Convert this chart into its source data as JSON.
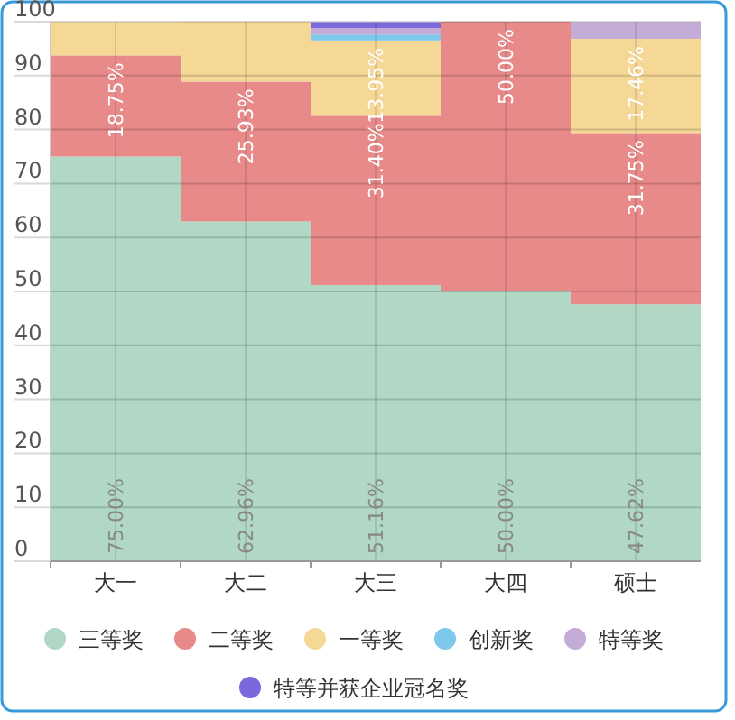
{
  "chart_data": {
    "type": "bar",
    "stacked": true,
    "categories": [
      "大一",
      "大二",
      "大三",
      "大四",
      "硕士"
    ],
    "ylim": [
      0,
      100
    ],
    "yticks": [
      0,
      10,
      20,
      30,
      40,
      50,
      60,
      70,
      80,
      90,
      100
    ],
    "grid": true,
    "legend": "bottom",
    "series": [
      {
        "name": "三等奖",
        "color": "#b0d8c4",
        "values": [
          75.0,
          62.96,
          51.16,
          50.0,
          47.62
        ],
        "value_labels": [
          "75.00%",
          "62.96%",
          "51.16%",
          "50.00%",
          "47.62%"
        ]
      },
      {
        "name": "二等奖",
        "color": "#e88a8a",
        "values": [
          18.75,
          25.93,
          31.4,
          50.0,
          31.75
        ],
        "value_labels": [
          "18.75%",
          "25.93%",
          "31.40%",
          "50.00%",
          "31.75%"
        ]
      },
      {
        "name": "一等奖",
        "color": "#f5d796",
        "values": [
          6.2,
          11.1,
          13.95,
          0,
          17.46
        ],
        "value_labels": [
          null,
          null,
          "13.95%",
          null,
          "17.46%"
        ]
      },
      {
        "name": "创新奖",
        "color": "#7ec8ec",
        "values": [
          0,
          0,
          1.1,
          0,
          0
        ],
        "value_labels": [
          null,
          null,
          null,
          null,
          null
        ]
      },
      {
        "name": "特等奖",
        "color": "#c3acd8",
        "values": [
          0,
          0,
          1.2,
          0,
          3.1
        ],
        "value_labels": [
          null,
          null,
          null,
          null,
          null
        ]
      },
      {
        "name": "特等并获企业冠名奖",
        "color": "#7b68dd",
        "values": [
          0,
          0,
          1.1,
          0,
          0
        ],
        "value_labels": [
          null,
          null,
          null,
          null,
          null
        ]
      }
    ]
  }
}
